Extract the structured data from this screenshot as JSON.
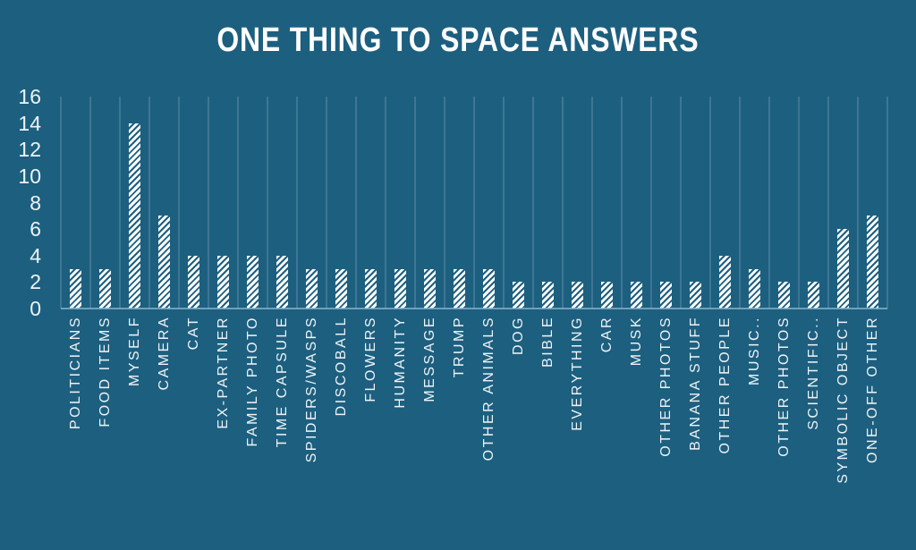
{
  "chart_data": {
    "type": "bar",
    "title": "ONE THING TO SPACE ANSWERS",
    "categories": [
      "POLITICIANS",
      "FOOD ITEMS",
      "MYSELF",
      "CAMERA",
      "CAT",
      "EX-PARTNER",
      "FAMILY PHOTO",
      "TIME CAPSULE",
      "SPIDERS/WASPS",
      "DISCOBALL",
      "FLOWERS",
      "HUMANITY",
      "MESSAGE",
      "TRUMP",
      "OTHER ANIMALS",
      "DOG",
      "BIBLE",
      "EVERYTHING",
      "CAR",
      "MUSK",
      "OTHER PHOTOS",
      "BANANA STUFF",
      "OTHER PEOPLE",
      "MUSIC..",
      "OTHER PHOTOS",
      "SCIENTIFIC..",
      "SYMBOLIC OBJECT",
      "ONE-OFF OTHER"
    ],
    "values": [
      3,
      3,
      14,
      7,
      4,
      4,
      4,
      4,
      3,
      3,
      3,
      3,
      3,
      3,
      3,
      2,
      2,
      2,
      2,
      2,
      2,
      2,
      4,
      3,
      2,
      2,
      6,
      7
    ],
    "xlabel": "",
    "ylabel": "",
    "ylim": [
      0,
      16
    ],
    "y_ticks": [
      0,
      2,
      4,
      6,
      8,
      10,
      12,
      14,
      16
    ],
    "grid": "vertical category boundaries only",
    "legend_position": "none",
    "bar_style": "white with diagonal hatch stripes",
    "colors": {
      "background": "#1d5f7f",
      "bar_fill": "#ffffff",
      "bar_hatch": "#1d5f7f",
      "gridline": "#4a7e9c",
      "axis_line": "#85b2c8",
      "text": "#eef4f7"
    }
  }
}
